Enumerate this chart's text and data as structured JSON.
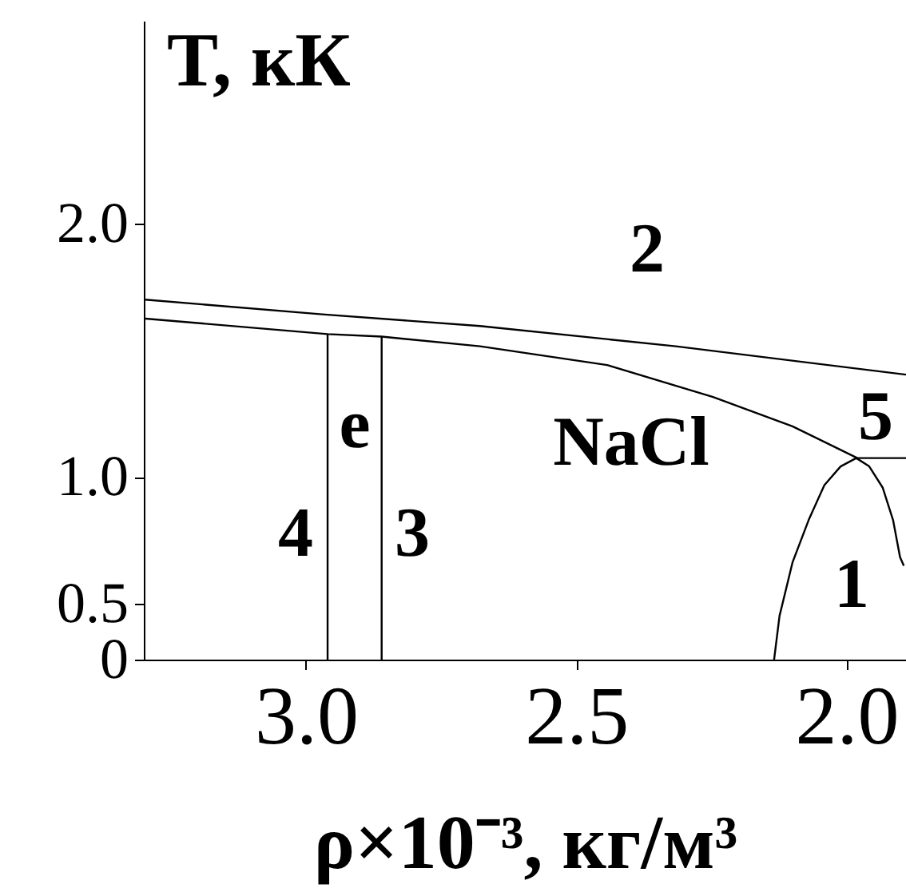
{
  "chart_data": {
    "type": "line",
    "xlabel": "ρ×10⁻³, кг/м³",
    "ylabel": "T, кК",
    "xlim": [
      3.3,
      1.89
    ],
    "ylim": [
      0.28,
      2.8
    ],
    "xticks": [
      {
        "value": 3.0,
        "label": "3.0"
      },
      2.5,
      {
        "value": 2.0,
        "label": "2.0"
      }
    ],
    "yticks": [
      {
        "value": 0.28,
        "label": "0"
      },
      0.5,
      {
        "value": 1.0,
        "label": "1.0"
      },
      {
        "value": 2.0,
        "label": "2.0"
      }
    ],
    "grid": false,
    "series": [
      {
        "color": "#000000",
        "x": [
          3.297,
          2.97,
          2.678,
          2.316,
          1.89
        ],
        "values": [
          1.7,
          1.642,
          1.596,
          1.516,
          1.404
        ]
      },
      {
        "color": "#000000",
        "x": [
          3.297,
          2.96,
          2.86,
          2.678,
          2.443,
          2.247,
          2.1,
          1.98
        ],
        "values": [
          1.625,
          1.564,
          1.554,
          1.516,
          1.442,
          1.316,
          1.2,
          1.075
        ]
      },
      {
        "color": "#000000",
        "x": [
          2.96,
          2.96
        ],
        "values": [
          0.28,
          1.564
        ]
      },
      {
        "color": "#000000",
        "x": [
          2.86,
          2.86
        ],
        "values": [
          0.28,
          1.554
        ]
      },
      {
        "color": "#000000",
        "x": [
          1.98,
          1.89
        ],
        "values": [
          1.075,
          1.075
        ]
      },
      {
        "color": "#000000",
        "x": [
          2.134,
          2.124,
          2.1,
          2.07,
          2.041,
          2.011,
          1.982,
          1.958,
          1.933,
          1.914,
          1.901,
          1.894
        ],
        "values": [
          0.28,
          0.452,
          0.663,
          0.831,
          0.968,
          1.042,
          1.075,
          1.042,
          0.958,
          0.831,
          0.684,
          0.65
        ]
      }
    ],
    "annotations": [
      "2",
      "e",
      "NaCl",
      "5",
      "4",
      "3",
      "1"
    ]
  }
}
